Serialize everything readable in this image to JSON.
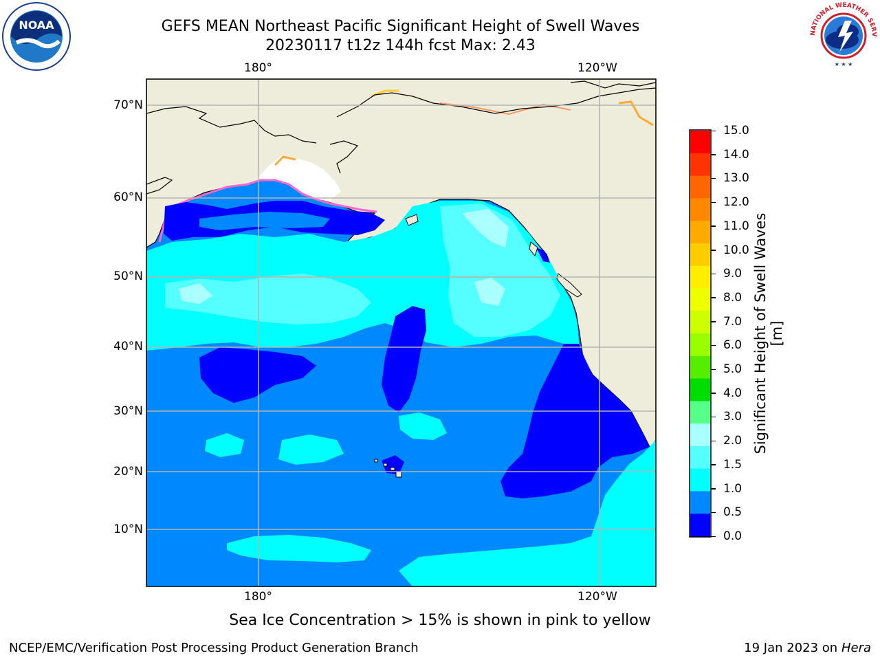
{
  "title": {
    "line1": "GEFS MEAN Northeast Pacific Significant Height of Swell Waves",
    "line2": "20230117 t12z 144h fcst   Max: 2.43"
  },
  "logos": {
    "left": {
      "icon": "noaa-logo-icon",
      "text": "NOAA"
    },
    "right": {
      "icon": "nws-logo-icon",
      "text": "NATIONAL WEATHER SERVICE"
    }
  },
  "map": {
    "lon_labels": [
      "180°",
      "120°W"
    ],
    "lat_labels": [
      "70°N",
      "60°N",
      "50°N",
      "40°N",
      "30°N",
      "20°N",
      "10°N"
    ],
    "colors": {
      "land": "#eeecda",
      "sea_ice": "#ffffff",
      "coast": "#000000",
      "grid": "#b4b4b4"
    }
  },
  "colorbar": {
    "label": "Significant Height of Swell Waves [m]",
    "ticks": [
      "15.0",
      "14.0",
      "13.0",
      "12.0",
      "11.0",
      "10.0",
      "9.0",
      "8.0",
      "7.0",
      "6.0",
      "5.0",
      "4.0",
      "3.0",
      "2.0",
      "1.5",
      "1.0",
      "0.5",
      "0.0"
    ],
    "colors_top_to_bottom": [
      "#ff0000",
      "#ff3300",
      "#ff6600",
      "#ff8800",
      "#ffaa00",
      "#ffcc00",
      "#ffee00",
      "#eeff00",
      "#ccff00",
      "#99ff00",
      "#55ee00",
      "#00dd00",
      "#55ff88",
      "#aaffff",
      "#55ffff",
      "#00ffff",
      "#0088ff",
      "#0000ff"
    ]
  },
  "footer": {
    "caption": "Sea Ice Concentration > 15% is shown in pink to yellow",
    "left": "NCEP/EMC/Verification Post Processing Product Generation Branch",
    "right_prefix": "19 Jan 2023 on ",
    "right_host": "Hera"
  }
}
